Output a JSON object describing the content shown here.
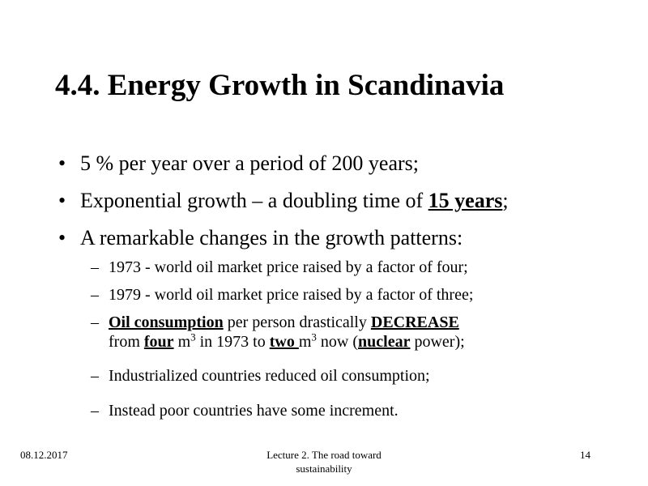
{
  "slide": {
    "title": "4.4. Energy Growth in Scandinavia",
    "bullets": [
      {
        "marker": "•",
        "text": "5 % per year over a period of 200 years;"
      },
      {
        "marker": "•",
        "pre": "Exponential growth – a doubling time of ",
        "bold_underlined": "15 years",
        "post": ";"
      },
      {
        "marker": "•",
        "text": "A remarkable changes in the growth patterns:"
      }
    ],
    "sub_bullets": {
      "marker": "–",
      "item1": "1973 - world oil market price raised by a factor of four;",
      "item2": "1979 - world oil market price raised by a factor of three;",
      "item3": {
        "b1": "Oil consumption",
        "t1": " per person drastically ",
        "b2": "DECREASE",
        "t2": "from ",
        "b3": "four",
        "t3": " m",
        "sup1": "3",
        "t4": " in 1973 to ",
        "b4": "two ",
        "t5": "m",
        "sup2": "3",
        "t6": " now (",
        "b5": "nuclear",
        "t7": " power);"
      },
      "item4": "Industrialized countries reduced oil consumption;",
      "item5": "Instead poor countries have some increment."
    }
  },
  "footer": {
    "date": "08.12.2017",
    "lecture_line1": "Lecture 2. The road toward",
    "lecture_line2": "sustainability",
    "page": "14"
  }
}
